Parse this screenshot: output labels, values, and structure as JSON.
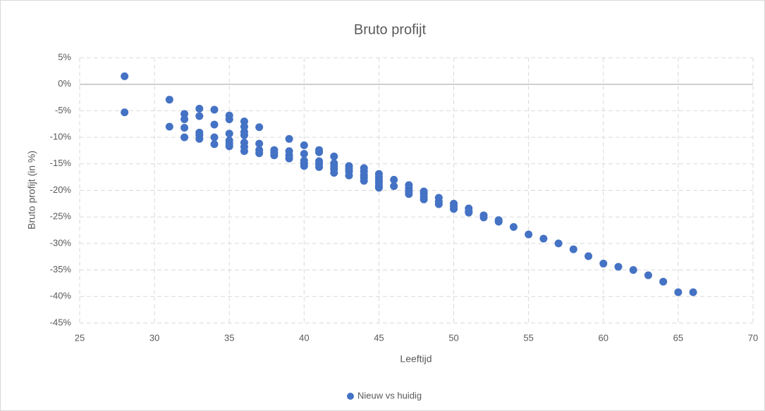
{
  "chart_data": {
    "type": "scatter",
    "title": "Bruto profijt",
    "x_label": "Leeftijd",
    "y_label": "Bruto profijt (in %)",
    "x": [
      28,
      28,
      31,
      31,
      32,
      32,
      32,
      32,
      33,
      33,
      33,
      33,
      33,
      34,
      34,
      34,
      34,
      35,
      35,
      35,
      35,
      35,
      35,
      36,
      36,
      36,
      36,
      36,
      36,
      36,
      37,
      37,
      37,
      37,
      38,
      38,
      38,
      39,
      39,
      39,
      39,
      40,
      40,
      40,
      40,
      40,
      41,
      41,
      41,
      41,
      41,
      42,
      42,
      42,
      42,
      42,
      43,
      43,
      43,
      43,
      44,
      44,
      44,
      44,
      44,
      45,
      45,
      45,
      45,
      45,
      45,
      46,
      46,
      47,
      47,
      47,
      47,
      48,
      48,
      48,
      48,
      49,
      49,
      49,
      50,
      50,
      50,
      51,
      51,
      51,
      52,
      52,
      53,
      53,
      54,
      55,
      56,
      57,
      58,
      59,
      60,
      61,
      62,
      63,
      64,
      65,
      66
    ],
    "series": [
      {
        "name": "Nieuw vs huidig",
        "color": "#4472c4",
        "values": [
          1.5,
          -5.3,
          -2.9,
          -8,
          -5.6,
          -6.6,
          -8.2,
          -10,
          -4.6,
          -6,
          -9.1,
          -9.6,
          -10.3,
          -4.8,
          -7.6,
          -10,
          -11.3,
          -5.9,
          -6.6,
          -9.3,
          -10.6,
          -11.2,
          -11.7,
          -7,
          -8,
          -9,
          -9.6,
          -11,
          -11.8,
          -12.6,
          -8.1,
          -11.2,
          -12.4,
          -13,
          -12.4,
          -12.9,
          -13.4,
          -10.3,
          -12.6,
          -13.4,
          -14,
          -11.5,
          -13.1,
          -14.4,
          -14.9,
          -15.4,
          -12.4,
          -12.8,
          -14.5,
          -15,
          -15.6,
          -13.6,
          -14.9,
          -15.5,
          -16,
          -16.7,
          -15.4,
          -15.9,
          -16.4,
          -17.2,
          -15.8,
          -16.4,
          -17.1,
          -17.6,
          -18.2,
          -16.9,
          -17.5,
          -18,
          -18.5,
          -19.1,
          -19.5,
          -18,
          -19.2,
          -19,
          -19.6,
          -20.2,
          -20.7,
          -20.2,
          -20.6,
          -21.2,
          -21.7,
          -21.4,
          -22.1,
          -22.6,
          -22.5,
          -23,
          -23.5,
          -23.4,
          -24,
          -24.2,
          -24.7,
          -25.1,
          -25.6,
          -25.9,
          -26.9,
          -28.3,
          -29.1,
          -30,
          -31.1,
          -32.4,
          -33.8,
          -34.4,
          -35,
          -36,
          -37.2,
          -39.2,
          -39.2
        ]
      }
    ],
    "xlim": [
      25,
      70
    ],
    "xticks": [
      25,
      30,
      35,
      40,
      45,
      50,
      55,
      60,
      65,
      70
    ],
    "ylim": [
      -45,
      5
    ],
    "yticks": [
      {
        "value": 5,
        "label": "5%"
      },
      {
        "value": 0,
        "label": "0%"
      },
      {
        "value": -5,
        "label": "-5%"
      },
      {
        "value": -10,
        "label": "-10%"
      },
      {
        "value": -15,
        "label": "-15%"
      },
      {
        "value": -20,
        "label": "-20%"
      },
      {
        "value": -25,
        "label": "-25%"
      },
      {
        "value": -30,
        "label": "-30%"
      },
      {
        "value": -35,
        "label": "-35%"
      },
      {
        "value": -40,
        "label": "-40%"
      },
      {
        "value": -45,
        "label": "-45%"
      }
    ],
    "grid": true,
    "legend": "bottom"
  }
}
